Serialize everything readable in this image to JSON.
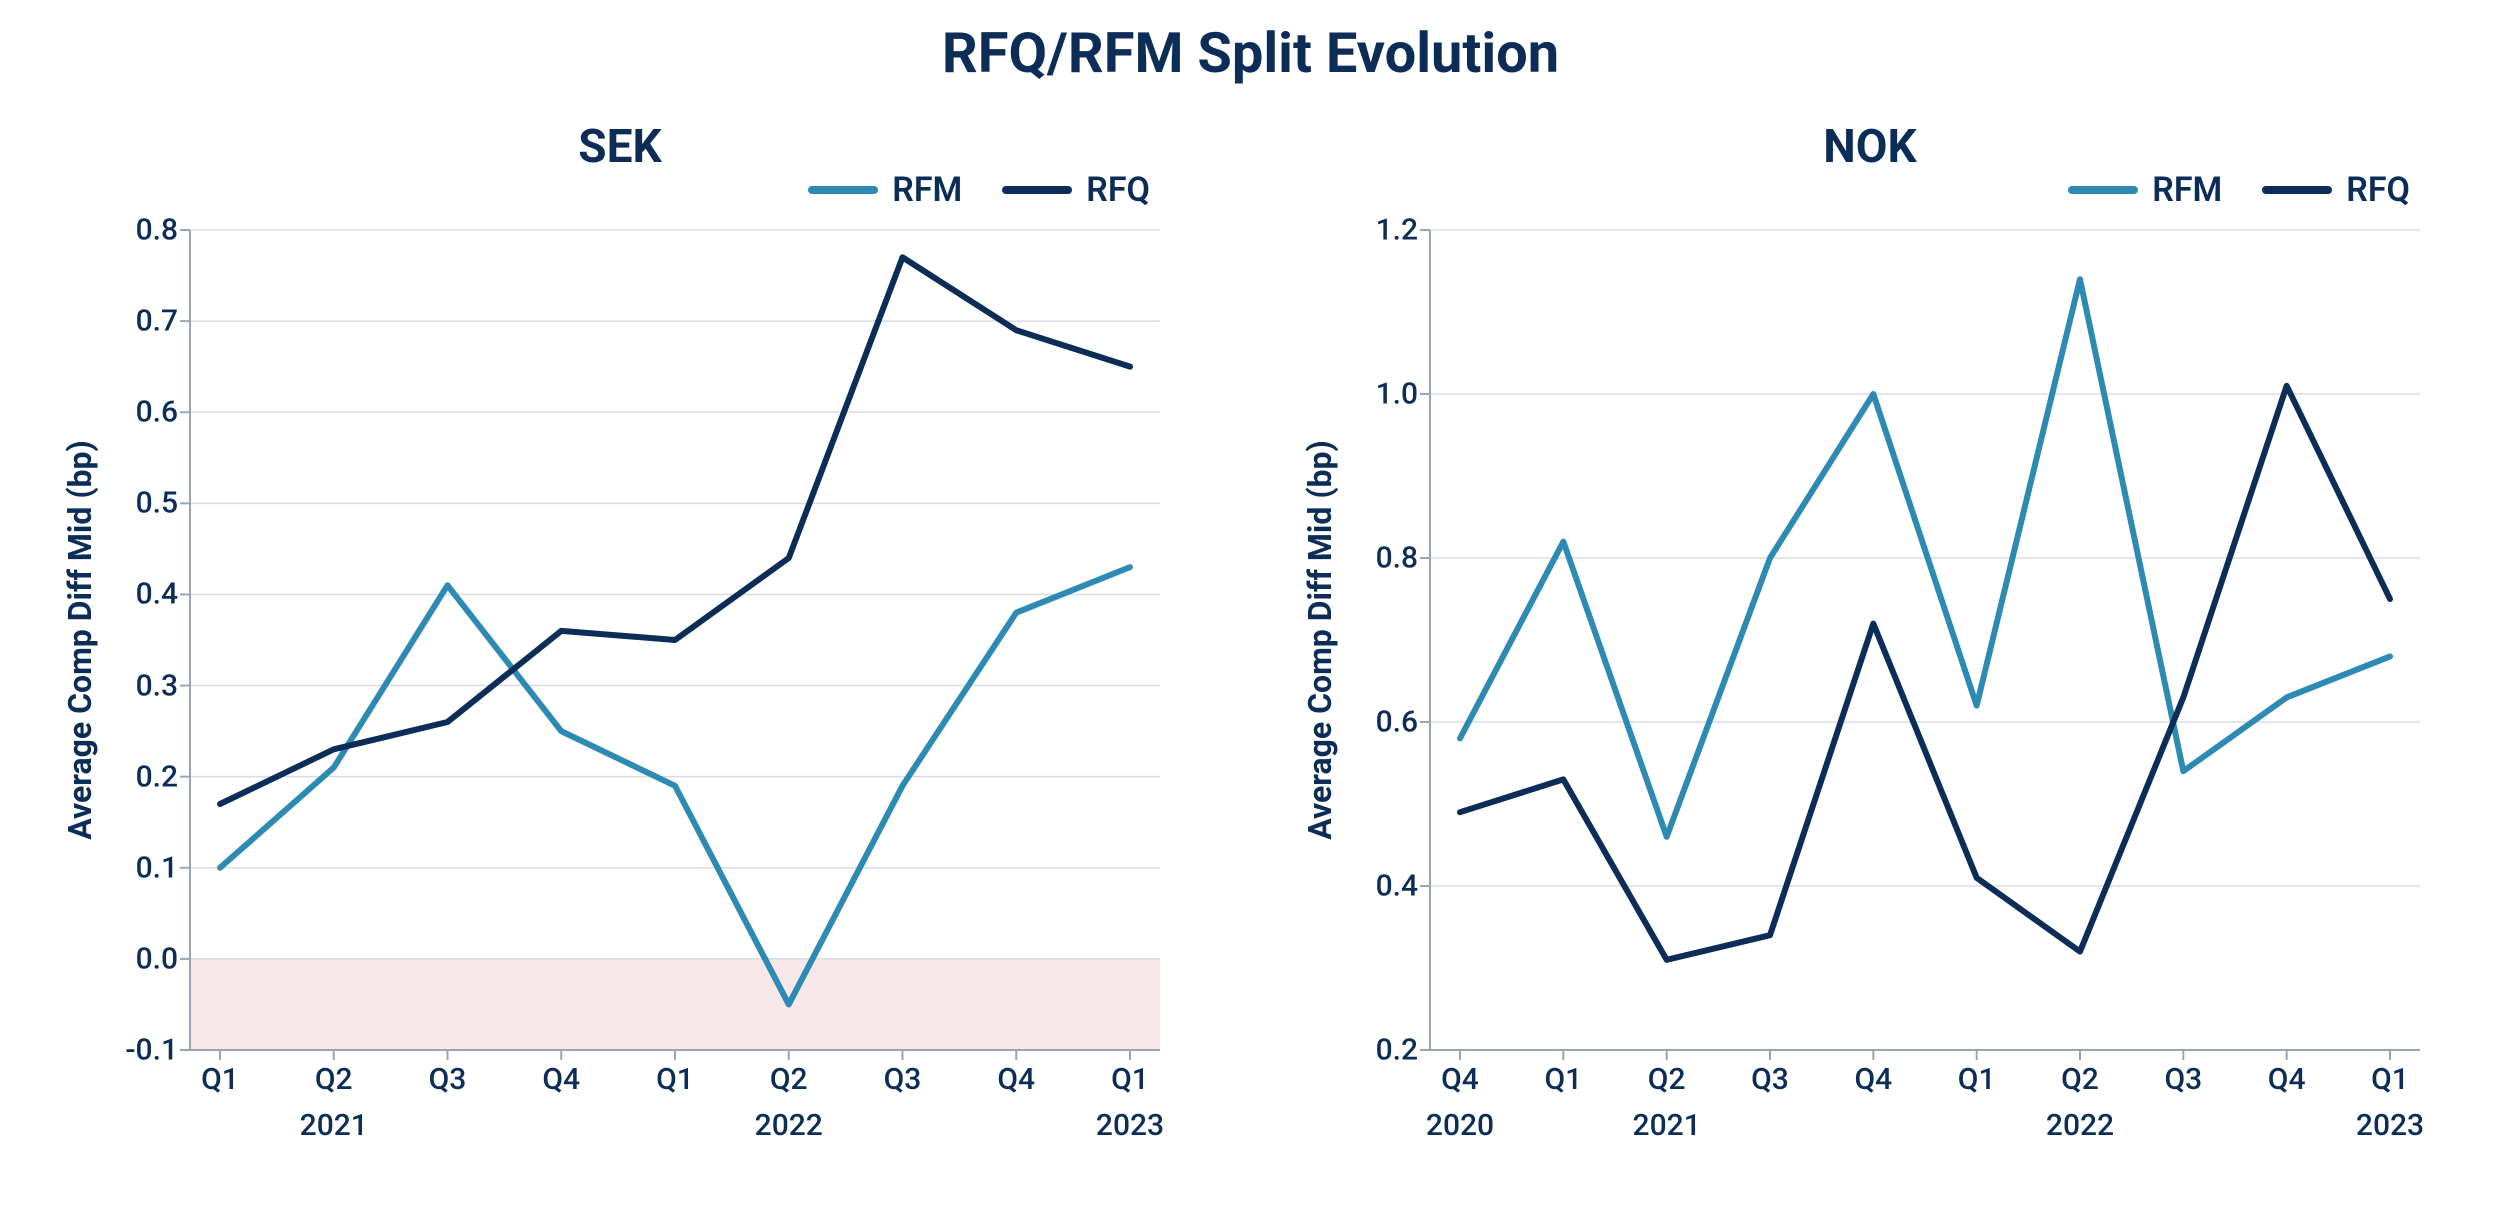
{
  "main_title": "RFQ/RFM Split Evolution",
  "colors": {
    "rfm_line": "#2d8bb3",
    "rfq_line": "#0c2d57",
    "grid": "#d8dde3",
    "axis": "#9aa5b3",
    "text": "#0c2d57",
    "negative_band_fill": "#f7e7e8",
    "background": "#ffffff"
  },
  "typography": {
    "main_title_fontsize": 56,
    "chart_title_fontsize": 46,
    "legend_fontsize": 34,
    "axis_label_fontsize": 32,
    "tick_fontsize": 30
  },
  "line_width": 6,
  "legend_swatch_width": 70,
  "legend_swatch_height": 8,
  "charts": [
    {
      "id": "sek",
      "title": "SEK",
      "ylabel": "Average Comp Diff Mid (bp)",
      "ylim": [
        -0.1,
        0.8
      ],
      "ytick_step": 0.1,
      "yticks": [
        -0.1,
        0.0,
        0.1,
        0.2,
        0.3,
        0.4,
        0.5,
        0.6,
        0.7,
        0.8
      ],
      "negative_band": {
        "from": -0.1,
        "to": 0.0
      },
      "x_categories": [
        "Q1",
        "Q2",
        "Q3",
        "Q4",
        "Q1",
        "Q2",
        "Q3",
        "Q4",
        "Q1"
      ],
      "x_year_labels": [
        {
          "at_index": 1,
          "label": "2021"
        },
        {
          "at_index": 5,
          "label": "2022"
        },
        {
          "at_index": 8,
          "label": "2023"
        }
      ],
      "legend": [
        {
          "label": "RFM",
          "color": "#2d8bb3"
        },
        {
          "label": "RFQ",
          "color": "#0c2d57"
        }
      ],
      "series": [
        {
          "name": "RFM",
          "color": "#2d8bb3",
          "values": [
            0.1,
            0.21,
            0.41,
            0.25,
            0.19,
            -0.05,
            0.19,
            0.38,
            0.43
          ]
        },
        {
          "name": "RFQ",
          "color": "#0c2d57",
          "values": [
            0.17,
            0.23,
            0.26,
            0.36,
            0.35,
            0.44,
            0.77,
            0.69,
            0.65
          ]
        }
      ]
    },
    {
      "id": "nok",
      "title": "NOK",
      "ylabel": "Average Comp Diff Mid (bp)",
      "ylim": [
        0.2,
        1.2
      ],
      "ytick_step": 0.2,
      "yticks": [
        0.2,
        0.4,
        0.6,
        0.8,
        1.0,
        1.2
      ],
      "negative_band": null,
      "x_categories": [
        "Q4",
        "Q1",
        "Q2",
        "Q3",
        "Q4",
        "Q1",
        "Q2",
        "Q3",
        "Q4",
        "Q1"
      ],
      "x_year_labels": [
        {
          "at_index": 0,
          "label": "2020"
        },
        {
          "at_index": 2,
          "label": "2021"
        },
        {
          "at_index": 6,
          "label": "2022"
        },
        {
          "at_index": 9,
          "label": "2023"
        }
      ],
      "legend": [
        {
          "label": "RFM",
          "color": "#2d8bb3"
        },
        {
          "label": "RFQ",
          "color": "#0c2d57"
        }
      ],
      "series": [
        {
          "name": "RFM",
          "color": "#2d8bb3",
          "values": [
            0.58,
            0.82,
            0.46,
            0.8,
            1.0,
            0.62,
            1.14,
            0.54,
            0.63,
            0.68
          ]
        },
        {
          "name": "RFQ",
          "color": "#0c2d57",
          "values": [
            0.49,
            0.53,
            0.31,
            0.34,
            0.72,
            0.41,
            0.32,
            0.63,
            1.01,
            0.75
          ]
        }
      ]
    }
  ]
}
